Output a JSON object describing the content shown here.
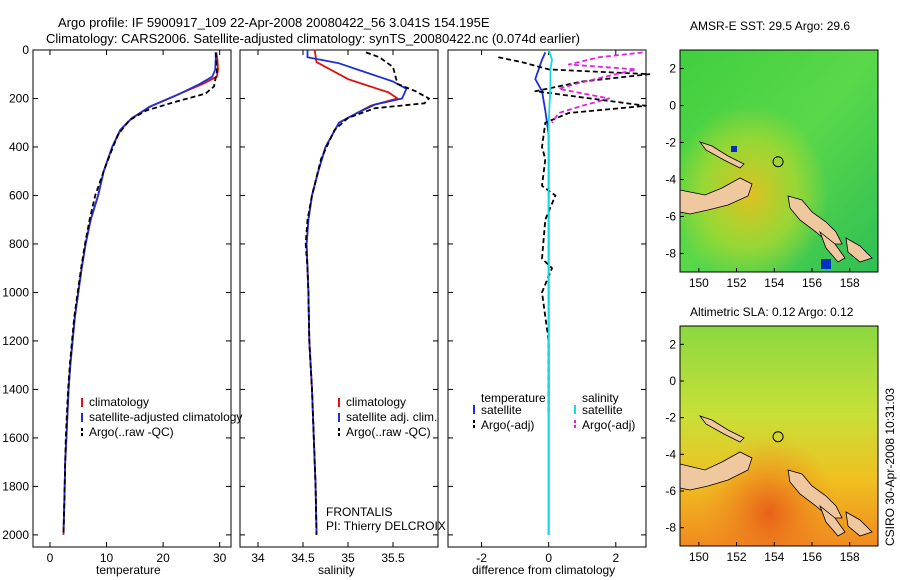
{
  "header": {
    "title_line1": "Argo profile: IF 5900917_109 22-Apr-2008 20080422_56 3.041S 154.195E",
    "title_line2": "Climatology: CARS2006. Satellite-adjusted climatology: synTS_20080422.nc (0.074d earlier)"
  },
  "side_label": "CSIRO 30-Apr-2008 10:31:03",
  "colors": {
    "climatology": "#e01010",
    "satellite": "#1f2fd8",
    "argo": "#000000",
    "satellite_sal": "#18d8e0",
    "argo_sal": "#e020e0"
  },
  "chart_data": [
    {
      "type": "line",
      "id": "temperature",
      "xlabel": "temperature",
      "ylabel": "",
      "xlim": [
        -3,
        32
      ],
      "ylim": [
        2050,
        0
      ],
      "xticks": [
        0,
        10,
        20,
        30
      ],
      "yticks": [
        0,
        200,
        400,
        600,
        800,
        1000,
        1200,
        1400,
        1600,
        1800,
        2000
      ],
      "legend": [
        "climatology",
        "satellite-adjusted climatology",
        "Argo(..raw -QC)"
      ],
      "series": [
        {
          "name": "climatology",
          "color": "#e01010",
          "dash": "",
          "points": [
            [
              29.4,
              10
            ],
            [
              29.6,
              40
            ],
            [
              29.7,
              80
            ],
            [
              29.5,
              110
            ],
            [
              27.0,
              140
            ],
            [
              23.0,
              180
            ],
            [
              18.0,
              230
            ],
            [
              14.5,
              280
            ],
            [
              12.5,
              330
            ],
            [
              11.0,
              400
            ],
            [
              9.5,
              500
            ],
            [
              8.5,
              600
            ],
            [
              7.2,
              700
            ],
            [
              6.3,
              800
            ],
            [
              5.6,
              900
            ],
            [
              5.0,
              1000
            ],
            [
              4.4,
              1100
            ],
            [
              4.0,
              1200
            ],
            [
              3.6,
              1300
            ],
            [
              3.3,
              1400
            ],
            [
              3.1,
              1500
            ],
            [
              2.9,
              1600
            ],
            [
              2.7,
              1700
            ],
            [
              2.6,
              1800
            ],
            [
              2.5,
              1900
            ],
            [
              2.4,
              2000
            ]
          ]
        },
        {
          "name": "satellite-adjusted climatology",
          "color": "#1f2fd8",
          "dash": "",
          "points": [
            [
              29.3,
              10
            ],
            [
              29.3,
              40
            ],
            [
              29.2,
              80
            ],
            [
              28.7,
              110
            ],
            [
              26.5,
              140
            ],
            [
              22.5,
              185
            ],
            [
              17.5,
              235
            ],
            [
              14.3,
              285
            ],
            [
              12.4,
              330
            ],
            [
              11.0,
              400
            ],
            [
              9.5,
              500
            ],
            [
              8.5,
              600
            ],
            [
              7.2,
              700
            ],
            [
              6.3,
              800
            ],
            [
              5.6,
              900
            ],
            [
              5.0,
              1000
            ],
            [
              4.4,
              1100
            ],
            [
              4.0,
              1200
            ],
            [
              3.6,
              1300
            ],
            [
              3.3,
              1400
            ],
            [
              3.1,
              1500
            ],
            [
              2.9,
              1600
            ],
            [
              2.7,
              1700
            ],
            [
              2.6,
              1800
            ],
            [
              2.5,
              1900
            ],
            [
              2.4,
              1990
            ]
          ]
        },
        {
          "name": "Argo(..raw -QC)",
          "color": "#000000",
          "dash": "5,3",
          "points": [
            [
              29.3,
              10
            ],
            [
              29.4,
              40
            ],
            [
              29.5,
              90
            ],
            [
              29.0,
              150
            ],
            [
              27.5,
              180
            ],
            [
              22.0,
              215
            ],
            [
              17.0,
              250
            ],
            [
              14.0,
              290
            ],
            [
              12.0,
              350
            ],
            [
              10.8,
              420
            ],
            [
              9.5,
              500
            ],
            [
              8.0,
              600
            ],
            [
              7.0,
              700
            ],
            [
              6.2,
              800
            ],
            [
              5.5,
              900
            ],
            [
              4.9,
              1000
            ],
            [
              4.3,
              1100
            ],
            [
              3.9,
              1200
            ],
            [
              3.5,
              1300
            ],
            [
              3.2,
              1400
            ],
            [
              3.0,
              1500
            ],
            [
              2.8,
              1600
            ],
            [
              2.7,
              1700
            ],
            [
              2.6,
              1800
            ],
            [
              2.5,
              1900
            ],
            [
              2.4,
              2000
            ]
          ]
        }
      ]
    },
    {
      "type": "line",
      "id": "salinity",
      "xlabel": "salinity",
      "ylabel": "",
      "xlim": [
        33.8,
        36.0
      ],
      "ylim": [
        2050,
        0
      ],
      "xticks": [
        34,
        34.5,
        35,
        35.5
      ],
      "yticks": [],
      "legend": [
        "climatology",
        "satellite adj. clim.",
        "Argo(..raw -QC)"
      ],
      "annotation_lines": [
        "FRONTALIS",
        "PI: Thierry DELCROIX"
      ],
      "series": [
        {
          "name": "climatology",
          "color": "#e01010",
          "dash": "",
          "points": [
            [
              34.63,
              0
            ],
            [
              34.65,
              50
            ],
            [
              35.0,
              120
            ],
            [
              35.45,
              175
            ],
            [
              35.55,
              200
            ],
            [
              35.25,
              230
            ],
            [
              35.1,
              260
            ],
            [
              34.9,
              300
            ],
            [
              34.75,
              400
            ],
            [
              34.67,
              500
            ],
            [
              34.6,
              600
            ],
            [
              34.56,
              700
            ],
            [
              34.54,
              800
            ],
            [
              34.55,
              900
            ],
            [
              34.56,
              1000
            ],
            [
              34.57,
              1200
            ],
            [
              34.6,
              1400
            ],
            [
              34.62,
              1600
            ],
            [
              34.64,
              1800
            ],
            [
              34.65,
              2000
            ]
          ]
        },
        {
          "name": "satellite adj. clim.",
          "color": "#1f2fd8",
          "dash": "",
          "points": [
            [
              34.55,
              0
            ],
            [
              34.55,
              30
            ],
            [
              34.9,
              55
            ],
            [
              35.1,
              80
            ],
            [
              35.5,
              130
            ],
            [
              35.65,
              160
            ],
            [
              35.6,
              200
            ],
            [
              35.3,
              225
            ],
            [
              35.1,
              260
            ],
            [
              34.9,
              300
            ],
            [
              34.75,
              400
            ],
            [
              34.67,
              500
            ],
            [
              34.6,
              600
            ],
            [
              34.56,
              700
            ],
            [
              34.54,
              800
            ],
            [
              34.55,
              900
            ],
            [
              34.56,
              1000
            ],
            [
              34.57,
              1200
            ],
            [
              34.6,
              1400
            ],
            [
              34.62,
              1600
            ],
            [
              34.64,
              1800
            ],
            [
              34.65,
              1990
            ]
          ]
        },
        {
          "name": "Argo(..raw -QC)",
          "color": "#000000",
          "dash": "5,3",
          "points": [
            [
              35.2,
              10
            ],
            [
              35.35,
              30
            ],
            [
              35.5,
              70
            ],
            [
              35.55,
              140
            ],
            [
              35.75,
              170
            ],
            [
              35.9,
              200
            ],
            [
              35.85,
              220
            ],
            [
              35.3,
              240
            ],
            [
              35.0,
              280
            ],
            [
              34.85,
              330
            ],
            [
              34.7,
              450
            ],
            [
              34.6,
              600
            ],
            [
              34.55,
              700
            ],
            [
              34.53,
              800
            ],
            [
              34.55,
              900
            ],
            [
              34.56,
              1000
            ],
            [
              34.57,
              1200
            ],
            [
              34.6,
              1400
            ],
            [
              34.62,
              1600
            ],
            [
              34.64,
              1800
            ],
            [
              34.65,
              2000
            ]
          ]
        }
      ]
    },
    {
      "type": "line",
      "id": "difference",
      "xlabel": "difference from climatology",
      "ylabel": "",
      "xlim": [
        -3.0,
        2.9
      ],
      "ylim": [
        2050,
        0
      ],
      "xticks": [
        -2,
        0,
        2
      ],
      "yticks": [],
      "legend_left": [
        "temperature",
        "satellite",
        "Argo(-adj)"
      ],
      "legend_right": [
        "salinity",
        "satellite",
        "Argo(-adj)"
      ],
      "series": [
        {
          "name": "temperature satellite",
          "color": "#1f2fd8",
          "dash": "",
          "points": [
            [
              -0.1,
              10
            ],
            [
              -0.2,
              40
            ],
            [
              -0.3,
              80
            ],
            [
              -0.4,
              120
            ],
            [
              -0.2,
              170
            ],
            [
              -0.1,
              250
            ],
            [
              0,
              350
            ],
            [
              0,
              2000
            ]
          ]
        },
        {
          "name": "temperature Argo(-adj)",
          "color": "#000000",
          "dash": "5,3",
          "points": [
            [
              -1.5,
              30
            ],
            [
              -0.8,
              50
            ],
            [
              0,
              80
            ],
            [
              3.0,
              100
            ],
            [
              1.0,
              130
            ],
            [
              -0.4,
              170
            ],
            [
              2.9,
              230
            ],
            [
              0.6,
              260
            ],
            [
              -0.1,
              300
            ],
            [
              -0.2,
              400
            ],
            [
              -0.1,
              450
            ],
            [
              -0.2,
              560
            ],
            [
              0.2,
              600
            ],
            [
              -0.1,
              700
            ],
            [
              -0.2,
              860
            ],
            [
              0.1,
              900
            ],
            [
              -0.2,
              1000
            ],
            [
              -0.1,
              1100
            ],
            [
              0,
              1200
            ],
            [
              0,
              1500
            ]
          ]
        },
        {
          "name": "salinity satellite",
          "color": "#18d8e0",
          "dash": "",
          "points": [
            [
              0,
              0
            ],
            [
              0.1,
              40
            ],
            [
              0.05,
              80
            ],
            [
              0.05,
              150
            ],
            [
              0,
              300
            ],
            [
              0,
              2000
            ]
          ]
        },
        {
          "name": "salinity Argo(-adj)",
          "color": "#e020e0",
          "dash": "5,3",
          "points": [
            [
              2.8,
              10
            ],
            [
              1.5,
              30
            ],
            [
              0.6,
              60
            ],
            [
              2.6,
              80
            ],
            [
              0.8,
              140
            ],
            [
              0.3,
              160
            ],
            [
              1.8,
              200
            ],
            [
              1.0,
              230
            ],
            [
              0.3,
              260
            ],
            [
              0.1,
              300
            ]
          ]
        }
      ]
    },
    {
      "type": "heatmap",
      "id": "sst-map",
      "title": "AMSR-E SST: 29.5 Argo: 29.6",
      "xlim": [
        149,
        159.5
      ],
      "ylim": [
        -9,
        3
      ],
      "xticks": [
        150,
        152,
        154,
        156,
        158
      ],
      "yticks": [
        2,
        0,
        -2,
        -4,
        -6,
        -8
      ],
      "argo_marker": [
        154.2,
        -3.04
      ]
    },
    {
      "type": "heatmap",
      "id": "sla-map",
      "title": "Altimetric SLA: 0.12 Argo: 0.12",
      "xlim": [
        149,
        159.5
      ],
      "ylim": [
        -9,
        3
      ],
      "xticks": [
        150,
        152,
        154,
        156,
        158
      ],
      "yticks": [
        2,
        0,
        -2,
        -4,
        -6,
        -8
      ],
      "argo_marker": [
        154.2,
        -3.04
      ]
    }
  ]
}
